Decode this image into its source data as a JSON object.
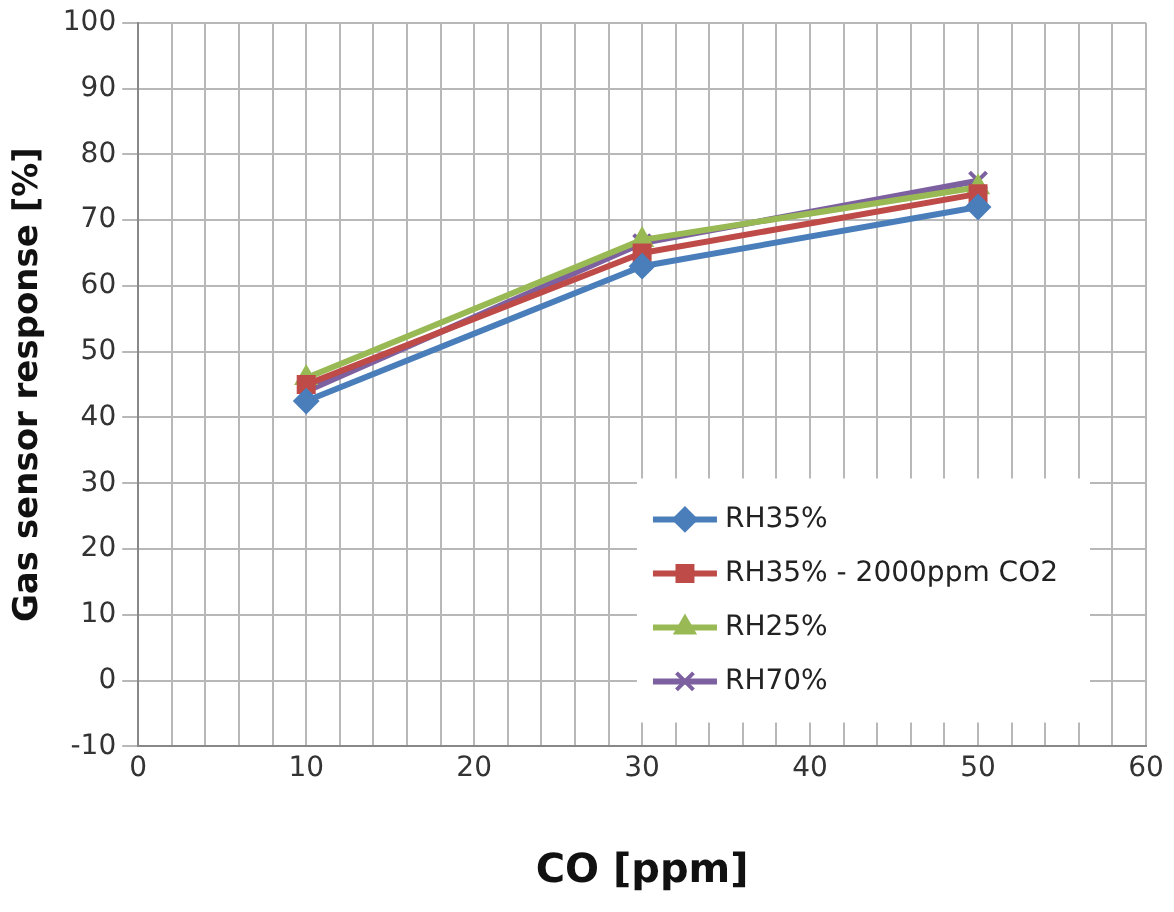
{
  "chart_data": {
    "type": "line",
    "xlabel": "CO [ppm]",
    "ylabel": "Gas sensor response [%]",
    "x": [
      10,
      30,
      50
    ],
    "series": [
      {
        "name": "RH35%",
        "color": "#4a7ebb",
        "values": [
          42.5,
          63,
          72
        ],
        "marker": "diamond"
      },
      {
        "name": "RH35% - 2000ppm CO2",
        "color": "#be4b48",
        "values": [
          45,
          65,
          74
        ],
        "marker": "square"
      },
      {
        "name": "RH25%",
        "color": "#98b954",
        "values": [
          46,
          67,
          75
        ],
        "marker": "triangle"
      },
      {
        "name": "RH70%",
        "color": "#7d60a0",
        "values": [
          44,
          66.5,
          76
        ],
        "marker": "cross"
      }
    ],
    "xlim": [
      0,
      60
    ],
    "xticks": [
      0,
      {
        "value": 2,
        "label": null
      },
      {
        "value": 4,
        "label": null
      },
      {
        "value": 6,
        "label": null
      },
      {
        "value": 8,
        "label": null
      },
      10,
      {
        "value": 12,
        "label": null
      },
      {
        "value": 14,
        "label": null
      },
      {
        "value": 16,
        "label": null
      },
      {
        "value": 18,
        "label": null
      },
      20,
      {
        "value": 22,
        "label": null
      },
      {
        "value": 24,
        "label": null
      },
      {
        "value": 26,
        "label": null
      },
      {
        "value": 28,
        "label": null
      },
      30,
      {
        "value": 32,
        "label": null
      },
      {
        "value": 34,
        "label": null
      },
      {
        "value": 36,
        "label": null
      },
      {
        "value": 38,
        "label": null
      },
      40,
      {
        "value": 42,
        "label": null
      },
      {
        "value": 44,
        "label": null
      },
      {
        "value": 46,
        "label": null
      },
      {
        "value": 48,
        "label": null
      },
      50,
      {
        "value": 52,
        "label": null
      },
      {
        "value": 54,
        "label": null
      },
      {
        "value": 56,
        "label": null
      },
      {
        "value": 58,
        "label": null
      },
      60
    ],
    "ylim": [
      -10,
      100
    ],
    "yticks": [
      -10,
      0,
      10,
      20,
      30,
      40,
      50,
      60,
      70,
      80,
      90,
      100
    ],
    "grid": true,
    "legend": "bottom right",
    "line_style": "solid"
  }
}
